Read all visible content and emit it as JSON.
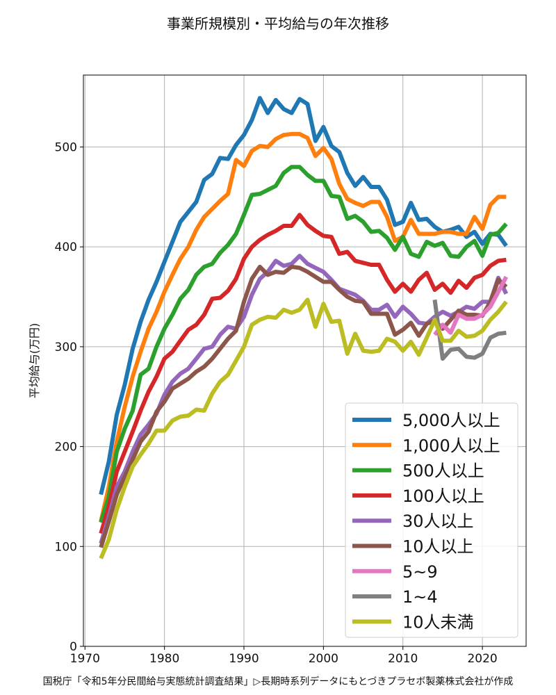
{
  "chart_data": {
    "type": "line",
    "title": "事業所規模別・平均給与の年次推移",
    "xlabel": "",
    "ylabel": "平均給与(万円)",
    "source": "国税庁「令和5年分民間給与実態統計調査結果」▷長期時系列データにもとづきプラセボ製薬株式会社が作成",
    "xlim": [
      1969.8,
      2025.5
    ],
    "ylim": [
      0,
      572
    ],
    "xticks": [
      1970,
      1980,
      1990,
      2000,
      2010,
      2020
    ],
    "yticks": [
      0,
      100,
      200,
      300,
      400,
      500
    ],
    "grid": true,
    "legend_position": "lower-right",
    "series": [
      {
        "name": "5,000人以上",
        "color": "#1f77b4",
        "start": 1972,
        "values": [
          152,
          185,
          232,
          262,
          298,
          325,
          347,
          365,
          385,
          405,
          425,
          435,
          445,
          467,
          473,
          489,
          488,
          502,
          512,
          527,
          549,
          534,
          547,
          538,
          534,
          548,
          543,
          506,
          520,
          501,
          495,
          474,
          461,
          470,
          460,
          460,
          447,
          422,
          425,
          444,
          427,
          428,
          420,
          415,
          417,
          420,
          410,
          415,
          403,
          413,
          412,
          401
        ]
      },
      {
        "name": "1,000人以上",
        "color": "#ff7f0e",
        "start": 1972,
        "values": [
          125,
          160,
          205,
          240,
          270,
          295,
          318,
          335,
          355,
          372,
          388,
          400,
          417,
          430,
          438,
          446,
          453,
          487,
          481,
          496,
          501,
          500,
          508,
          512,
          513,
          513,
          509,
          491,
          499,
          488,
          463,
          448,
          444,
          441,
          445,
          445,
          430,
          406,
          410,
          427,
          413,
          413,
          413,
          415,
          415,
          413,
          413,
          430,
          418,
          442,
          450,
          450
        ]
      },
      {
        "name": "500人以上",
        "color": "#2ca02c",
        "start": 1972,
        "values": [
          124,
          150,
          195,
          218,
          236,
          272,
          278,
          300,
          318,
          332,
          348,
          357,
          372,
          380,
          383,
          394,
          402,
          413,
          432,
          452,
          453,
          457,
          461,
          474,
          480,
          480,
          472,
          466,
          466,
          451,
          450,
          428,
          431,
          425,
          415,
          416,
          409,
          397,
          410,
          393,
          390,
          405,
          401,
          404,
          391,
          390,
          400,
          406,
          391,
          412,
          414,
          423
        ]
      },
      {
        "name": "100人以上",
        "color": "#d62728",
        "start": 1972,
        "values": [
          113,
          140,
          175,
          195,
          215,
          236,
          255,
          270,
          288,
          295,
          306,
          317,
          322,
          332,
          348,
          349,
          356,
          368,
          388,
          400,
          407,
          412,
          416,
          421,
          421,
          432,
          422,
          416,
          411,
          410,
          393,
          395,
          386,
          384,
          382,
          382,
          367,
          355,
          363,
          355,
          367,
          374,
          357,
          363,
          354,
          366,
          359,
          369,
          372,
          381,
          386,
          387
        ]
      },
      {
        "name": "30人以上",
        "color": "#9467bd",
        "start": 1972,
        "values": [
          103,
          130,
          160,
          175,
          195,
          212,
          222,
          233,
          252,
          265,
          273,
          278,
          288,
          298,
          300,
          312,
          320,
          318,
          330,
          352,
          368,
          375,
          386,
          381,
          383,
          391,
          383,
          379,
          375,
          367,
          358,
          355,
          352,
          346,
          337,
          337,
          342,
          330,
          340,
          333,
          324,
          323,
          330,
          335,
          331,
          335,
          340,
          338,
          345,
          345,
          369,
          353
        ]
      },
      {
        "name": "10人以上",
        "color": "#8c564b",
        "start": 1972,
        "values": [
          99,
          125,
          152,
          170,
          187,
          205,
          215,
          235,
          245,
          258,
          263,
          268,
          275,
          280,
          288,
          298,
          308,
          316,
          345,
          368,
          380,
          372,
          375,
          374,
          380,
          379,
          375,
          370,
          365,
          365,
          357,
          350,
          346,
          345,
          333,
          333,
          333,
          312,
          317,
          324,
          311,
          323,
          326,
          318,
          327,
          336,
          332,
          332,
          331,
          345,
          367,
          360
        ]
      },
      {
        "name": "5~9",
        "color": "#e377c2",
        "start": 2014,
        "values": [
          312,
          322,
          314,
          332,
          328,
          328,
          332,
          340,
          355,
          370
        ]
      },
      {
        "name": "1~4",
        "color": "#7f7f7f",
        "start": 2014,
        "values": [
          347,
          288,
          297,
          298,
          290,
          289,
          293,
          309,
          313,
          314
        ]
      },
      {
        "name": "10人未満",
        "color": "#bcbd22",
        "start": 1972,
        "values": [
          88,
          107,
          137,
          160,
          180,
          192,
          203,
          216,
          216,
          226,
          230,
          231,
          237,
          236,
          253,
          265,
          272,
          286,
          300,
          322,
          327,
          330,
          329,
          337,
          334,
          337,
          347,
          320,
          343,
          325,
          326,
          293,
          313,
          296,
          295,
          296,
          308,
          305,
          296,
          305,
          292,
          309,
          327,
          306,
          306,
          316,
          310,
          311,
          316,
          327,
          335,
          345
        ]
      }
    ]
  }
}
